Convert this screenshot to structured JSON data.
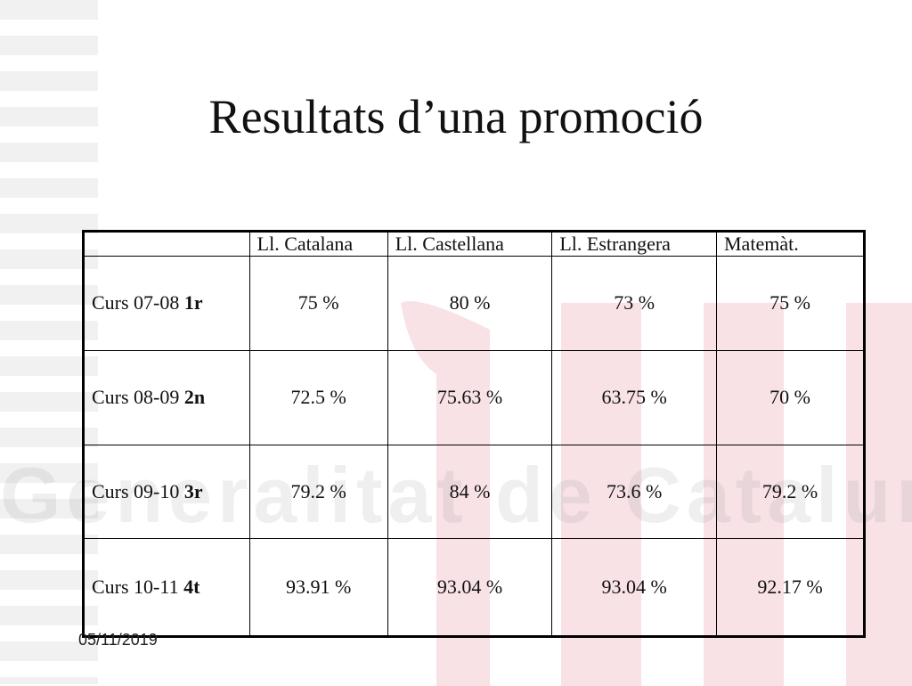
{
  "title": "Resultats d’una promoció",
  "table": {
    "headers": [
      "",
      "Ll. Catalana",
      "Ll. Castellana",
      "Ll. Estrangera",
      "Matemàt."
    ],
    "rows": [
      {
        "label_prefix": "Curs 07-08 ",
        "label_bold": "1r",
        "values": [
          "75 %",
          "80 %",
          "73 %",
          "75 %"
        ]
      },
      {
        "label_prefix": "Curs 08-09 ",
        "label_bold": "2n",
        "values": [
          "72.5 %",
          "75.63 %",
          "63.75 %",
          "70 %"
        ]
      },
      {
        "label_prefix": "Curs 09-10 ",
        "label_bold": "3r",
        "values": [
          "79.2 %",
          "84 %",
          "73.6 %",
          "79.2 %"
        ]
      },
      {
        "label_prefix": "Curs 10-11 ",
        "label_bold": "4t",
        "values": [
          "93.91 %",
          "93.04 %",
          "93.04 %",
          "92.17 %"
        ]
      }
    ]
  },
  "footer": {
    "date": "05/11/2019"
  },
  "watermark": {
    "text": "Generalitat de Catalunya",
    "color": "#c8102e"
  }
}
